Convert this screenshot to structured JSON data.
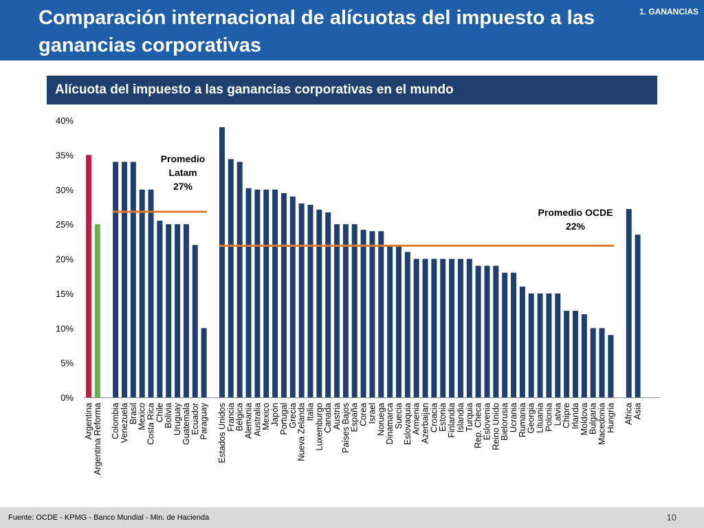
{
  "header": {
    "title": "Comparación internacional de alícuotas del impuesto a las ganancias corporativas",
    "section_tag": "1. GANANCIAS"
  },
  "subtitle": "Alícuota del impuesto a las ganancias corporativas en el mundo",
  "footer": {
    "source": "Fuente: OCDE - KPMG - Banco Mundial - Min. de Hacienda",
    "page_number": "10"
  },
  "colors": {
    "header_bg": "#1f5ea8",
    "subtitle_bg": "#1f3f6e",
    "bar_default": "#1f3f6e",
    "bar_argentina": "#c8184a",
    "bar_reform": "#6ab04c",
    "average_line": "#e07b2e"
  },
  "chart_data": {
    "type": "bar",
    "ylim": [
      0,
      40
    ],
    "yticks": [
      0,
      5,
      10,
      15,
      20,
      25,
      30,
      35,
      40
    ],
    "ytick_labels": [
      "0%",
      "5%",
      "10%",
      "15%",
      "20%",
      "25%",
      "30%",
      "35%",
      "40%"
    ],
    "groups": [
      {
        "name": "argentina",
        "bars": [
          {
            "label": "Argentina",
            "value": 35,
            "color": "argentina"
          },
          {
            "label": "Argentina Reforma",
            "value": 25,
            "color": "reform"
          }
        ]
      },
      {
        "name": "latam",
        "bars": [
          {
            "label": "Colombia",
            "value": 34
          },
          {
            "label": "Venezuela",
            "value": 34
          },
          {
            "label": "Brasil",
            "value": 34
          },
          {
            "label": "Mexico",
            "value": 30
          },
          {
            "label": "Costa Rica",
            "value": 30
          },
          {
            "label": "Chile",
            "value": 25.5
          },
          {
            "label": "Bolivia",
            "value": 25
          },
          {
            "label": "Uruguay",
            "value": 25
          },
          {
            "label": "Guatemala",
            "value": 25
          },
          {
            "label": "Ecuador",
            "value": 22
          },
          {
            "label": "Paraguay",
            "value": 10
          }
        ]
      },
      {
        "name": "ocde",
        "bars": [
          {
            "label": "Estados Unidos",
            "value": 39
          },
          {
            "label": "Francia",
            "value": 34.4
          },
          {
            "label": "Bélgica",
            "value": 34
          },
          {
            "label": "Alemania",
            "value": 30.2
          },
          {
            "label": "Australia",
            "value": 30
          },
          {
            "label": "Mexico",
            "value": 30
          },
          {
            "label": "Japón",
            "value": 30
          },
          {
            "label": "Portugal",
            "value": 29.5
          },
          {
            "label": "Grecia",
            "value": 29
          },
          {
            "label": "Nueva Zelanda",
            "value": 28
          },
          {
            "label": "Italia",
            "value": 27.8
          },
          {
            "label": "Luxemburgo",
            "value": 27.1
          },
          {
            "label": "Canada",
            "value": 26.7
          },
          {
            "label": "Austria",
            "value": 25
          },
          {
            "label": "Países Bajos",
            "value": 25
          },
          {
            "label": "España",
            "value": 25
          },
          {
            "label": "Corea",
            "value": 24.2
          },
          {
            "label": "Israel",
            "value": 24
          },
          {
            "label": "Noruega",
            "value": 24
          },
          {
            "label": "Dinamarca",
            "value": 22
          },
          {
            "label": "Suecia",
            "value": 22
          },
          {
            "label": "Eslovaquia",
            "value": 21
          },
          {
            "label": "Armenia",
            "value": 20
          },
          {
            "label": "Azerbaijan",
            "value": 20
          },
          {
            "label": "Croacia",
            "value": 20
          },
          {
            "label": "Estonia",
            "value": 20
          },
          {
            "label": "Finlandia",
            "value": 20
          },
          {
            "label": "Islandia",
            "value": 20
          },
          {
            "label": "Turquia",
            "value": 20
          },
          {
            "label": "Rep. Checa",
            "value": 19
          },
          {
            "label": "Eslovenia",
            "value": 19
          },
          {
            "label": "Reino Unido",
            "value": 19
          },
          {
            "label": "Bielorusia",
            "value": 18
          },
          {
            "label": "Ucrania",
            "value": 18
          },
          {
            "label": "Rumania",
            "value": 16
          },
          {
            "label": "Georgia",
            "value": 15
          },
          {
            "label": "Lituania",
            "value": 15
          },
          {
            "label": "Polonia",
            "value": 15
          },
          {
            "label": "Latvia",
            "value": 15
          },
          {
            "label": "Chipre",
            "value": 12.5
          },
          {
            "label": "Irlanda",
            "value": 12.5
          },
          {
            "label": "Moldova",
            "value": 12
          },
          {
            "label": "Bulgaria",
            "value": 10
          },
          {
            "label": "Macedonia",
            "value": 10
          },
          {
            "label": "Hungria",
            "value": 9
          }
        ]
      },
      {
        "name": "regions",
        "bars": [
          {
            "label": "Africa",
            "value": 27.2
          },
          {
            "label": "Asia",
            "value": 23.5
          }
        ]
      }
    ],
    "averages": [
      {
        "name": "latam",
        "group": "latam",
        "value": 26.8,
        "label_lines": [
          "Promedio",
          "Latam",
          "27%"
        ]
      },
      {
        "name": "ocde",
        "group": "ocde",
        "value": 21.9,
        "label_lines": [
          "Promedio OCDE",
          "22%"
        ]
      }
    ]
  }
}
